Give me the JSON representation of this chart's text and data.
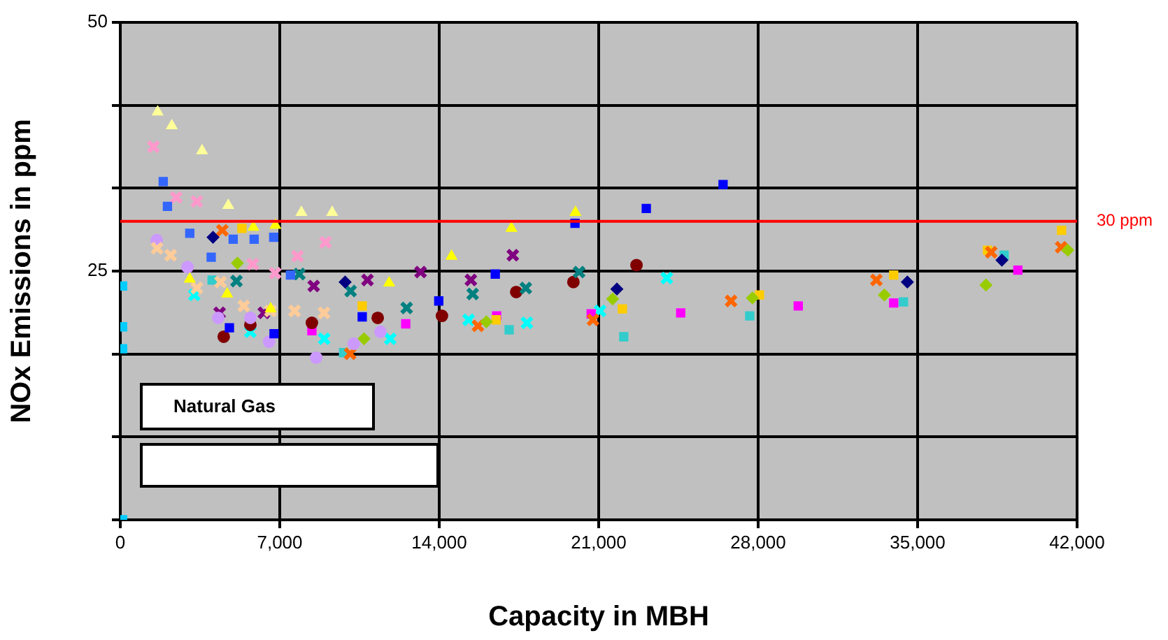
{
  "chart_data": {
    "type": "scatter",
    "xlabel": "Capacity in MBH",
    "ylabel": "NOx Emissions in ppm",
    "annotations": [
      "Natural Gas"
    ],
    "xlim": [
      0,
      42000
    ],
    "xticks": [
      0,
      {
        "value": 7000,
        "label": "7,000"
      },
      {
        "value": 14000,
        "label": "14,000"
      },
      {
        "value": 21000,
        "label": "21,000"
      },
      {
        "value": 28000,
        "label": "28,000"
      },
      {
        "value": 35000,
        "label": "35,000"
      },
      {
        "value": 42000,
        "label": "42,000"
      }
    ],
    "ylim": [
      0,
      50
    ],
    "yticks": [
      {
        "value": 0,
        "label": null
      },
      {
        "value": 8.333,
        "label": null
      },
      {
        "value": 16.667,
        "label": null
      },
      25,
      {
        "value": 33.333,
        "label": null
      },
      {
        "value": 41.667,
        "label": null
      },
      50
    ],
    "grid": true,
    "legend": false,
    "ref_lines": [
      {
        "axis": "y",
        "value": 30,
        "label": "30 ppm",
        "color": "#ff0000"
      }
    ],
    "series": [
      {
        "color": "#ffff99",
        "marker": "triangle",
        "x": [
          1640,
          2260,
          3590,
          4740,
          7950,
          9300
        ],
        "values": [
          41.0,
          39.6,
          37.1,
          31.6,
          30.9,
          30.9
        ]
      },
      {
        "color": "#ffff00",
        "marker": "triangle",
        "x": [
          3050,
          4690,
          5840,
          6810,
          11800,
          6600,
          14540,
          17170,
          19980
        ],
        "values": [
          24.2,
          22.7,
          29.4,
          29.6,
          23.8,
          21.2,
          26.5,
          29.3,
          30.9
        ]
      },
      {
        "color": "#0000ff",
        "marker": "square",
        "x": [
          4790,
          6750,
          10620,
          13980,
          16460,
          19960,
          23090,
          26460
        ],
        "values": [
          19.3,
          18.7,
          20.4,
          22.0,
          24.7,
          29.8,
          31.3,
          33.7
        ]
      },
      {
        "color": "#3366ff",
        "marker": "square",
        "x": [
          1885,
          2070,
          3050,
          3990,
          4955,
          5876,
          6735,
          7470
        ],
        "values": [
          34.0,
          31.5,
          28.8,
          26.4,
          28.2,
          28.2,
          28.4,
          24.6
        ]
      },
      {
        "color": "#ff99cc",
        "marker": "cross",
        "x": [
          1455,
          2456,
          3360,
          5815,
          7780,
          9007,
          6800
        ],
        "values": [
          37.5,
          32.4,
          32.0,
          25.7,
          26.5,
          27.9,
          24.8
        ]
      },
      {
        "color": "#ffcc99",
        "marker": "cross",
        "x": [
          1615,
          2210,
          3360,
          5420,
          7650,
          8940,
          4400,
          6590
        ],
        "values": [
          27.3,
          26.6,
          23.3,
          21.5,
          21.0,
          20.8,
          23.9,
          21.0
        ]
      },
      {
        "color": "#cc99ff",
        "marker": "circle",
        "x": [
          1600,
          2950,
          4300,
          5710,
          6530,
          10250,
          11420,
          8600
        ],
        "values": [
          28.1,
          25.4,
          20.3,
          20.3,
          17.9,
          17.7,
          18.9,
          16.3
        ]
      },
      {
        "color": "#000080",
        "marker": "diamond",
        "x": [
          4070,
          9870,
          21800,
          34550,
          38700
        ],
        "values": [
          28.4,
          23.9,
          23.2,
          23.9,
          26.1
        ]
      },
      {
        "color": "#800080",
        "marker": "cross",
        "x": [
          4360,
          6300,
          8490,
          10850,
          13180,
          15390,
          17230
        ],
        "values": [
          20.8,
          20.8,
          23.5,
          24.1,
          24.9,
          24.1,
          26.6
        ]
      },
      {
        "color": "#008080",
        "marker": "cross",
        "x": [
          5100,
          7860,
          10110,
          12570,
          15470,
          17800,
          20140
        ],
        "values": [
          24.0,
          24.7,
          23.0,
          21.3,
          22.7,
          23.3,
          24.9
        ]
      },
      {
        "color": "#800000",
        "marker": "circle",
        "x": [
          4540,
          5710,
          8410,
          11300,
          14120,
          17380,
          19890,
          22660
        ],
        "values": [
          18.4,
          19.6,
          19.8,
          20.3,
          20.5,
          22.9,
          23.9,
          25.6
        ]
      },
      {
        "color": "#99cc00",
        "marker": "diamond",
        "x": [
          5140,
          10700,
          16070,
          21610,
          27750,
          33540,
          38000,
          41590
        ],
        "values": [
          25.8,
          18.2,
          19.9,
          22.2,
          22.3,
          22.6,
          23.6,
          27.1
        ]
      },
      {
        "color": "#ff6600",
        "marker": "cross",
        "x": [
          4480,
          10090,
          15700,
          20750,
          26810,
          33190,
          38230,
          41300
        ],
        "values": [
          29.1,
          16.7,
          19.5,
          20.1,
          22.0,
          24.1,
          26.9,
          27.4
        ]
      },
      {
        "color": "#ffcc00",
        "marker": "square",
        "x": [
          5340,
          10620,
          16500,
          22040,
          28060,
          33950,
          38070,
          41320
        ],
        "values": [
          29.3,
          21.5,
          20.1,
          21.2,
          22.6,
          24.6,
          27.1,
          29.1
        ]
      },
      {
        "color": "#ff00ff",
        "marker": "square",
        "x": [
          8410,
          12530,
          16520,
          20670,
          24600,
          29760,
          33950,
          39400
        ],
        "values": [
          19.0,
          19.7,
          20.5,
          20.7,
          20.8,
          21.5,
          21.8,
          25.1
        ]
      },
      {
        "color": "#33cccc",
        "marker": "square",
        "x": [
          4030,
          9800,
          17070,
          22100,
          27630,
          34380,
          38800
        ],
        "values": [
          24.1,
          16.8,
          19.1,
          18.4,
          20.5,
          21.9,
          26.6
        ]
      },
      {
        "color": "#00ffff",
        "marker": "cross",
        "x": [
          3250,
          5710,
          8950,
          11850,
          15290,
          17850,
          21060,
          23990
        ],
        "values": [
          22.6,
          18.9,
          18.2,
          18.2,
          20.1,
          19.8,
          21.0,
          24.3
        ]
      },
      {
        "color": "#00ccff",
        "marker": "square",
        "x": [
          100,
          100,
          100,
          100
        ],
        "values": [
          23.5,
          19.4,
          17.2,
          0
        ]
      }
    ]
  }
}
